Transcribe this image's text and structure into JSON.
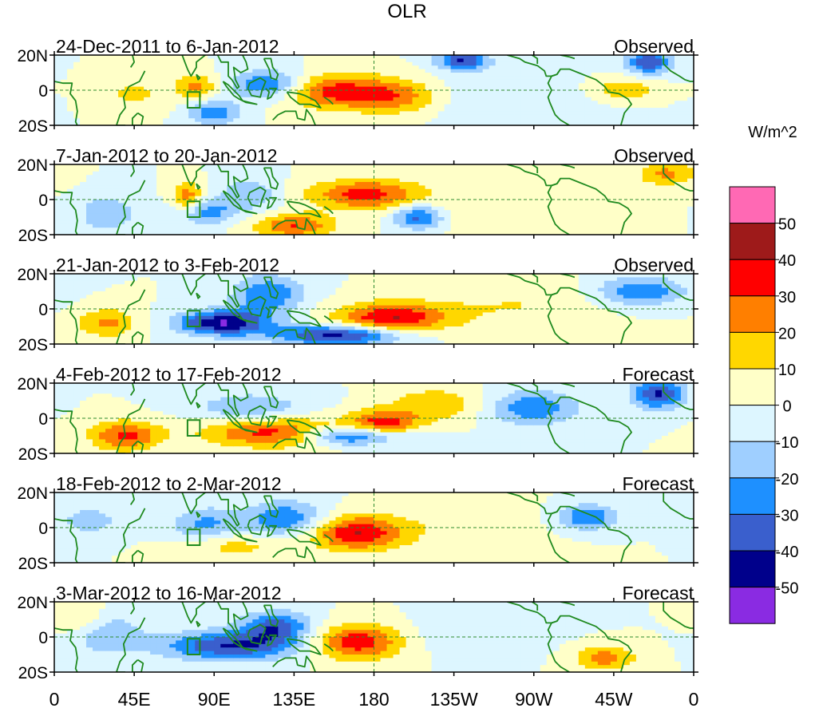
{
  "chart_data": {
    "type": "heatmap",
    "title": "OLR",
    "units_label": "W/m^2",
    "equator_label_style": "dashed equator line and 180 meridian",
    "y_tick_labels": [
      "20N",
      "0",
      "20S"
    ],
    "x_tick_labels": [
      "0",
      "45E",
      "90E",
      "135E",
      "180",
      "135W",
      "90W",
      "45W",
      "0"
    ],
    "x_ticks_lon": [
      0,
      45,
      90,
      135,
      180,
      225,
      270,
      315,
      360
    ],
    "lon_range": [
      0,
      360
    ],
    "lat_range": [
      -20,
      20
    ],
    "colorbar": {
      "levels": [
        -50,
        -40,
        -30,
        -20,
        -10,
        0,
        10,
        20,
        30,
        40,
        50
      ],
      "tick_labels": [
        "50",
        "40",
        "30",
        "20",
        "10",
        "0",
        "-10",
        "-20",
        "-30",
        "-40",
        "-50"
      ],
      "colors": [
        "#8a2be2",
        "#00008b",
        "#3a5fcd",
        "#1e90ff",
        "#9fcfff",
        "#ddf6ff",
        "#ffffc8",
        "#ffd700",
        "#ff7f00",
        "#ff0000",
        "#9e1a1a",
        "#ff69b4"
      ]
    },
    "panels": [
      {
        "period": "24-Dec-2011 to 6-Jan-2012",
        "kind": "Observed",
        "anomalies": [
          {
            "lon": 160,
            "lat": -1,
            "amp": 35,
            "slon": 22,
            "slat": 7
          },
          {
            "lon": 195,
            "lat": -4,
            "amp": 22,
            "slon": 16,
            "slat": 7
          },
          {
            "lon": 120,
            "lat": 3,
            "amp": -32,
            "slon": 14,
            "slat": 6
          },
          {
            "lon": 90,
            "lat": -13,
            "amp": -28,
            "slon": 10,
            "slat": 5
          },
          {
            "lon": 230,
            "lat": 17,
            "amp": -40,
            "slon": 10,
            "slat": 4
          },
          {
            "lon": 335,
            "lat": 16,
            "amp": -38,
            "slon": 9,
            "slat": 5
          },
          {
            "lon": 320,
            "lat": 0,
            "amp": 20,
            "slon": 14,
            "slat": 5
          },
          {
            "lon": 80,
            "lat": 2,
            "amp": 24,
            "slon": 8,
            "slat": 5
          },
          {
            "lon": 45,
            "lat": -2,
            "amp": 12,
            "slon": 14,
            "slat": 7
          },
          {
            "lon": 260,
            "lat": -5,
            "amp": -9,
            "slon": 40,
            "slat": 10
          }
        ]
      },
      {
        "period": "7-Jan-2012 to 20-Jan-2012",
        "kind": "Observed",
        "anomalies": [
          {
            "lon": 175,
            "lat": 3,
            "amp": 34,
            "slon": 22,
            "slat": 6
          },
          {
            "lon": 135,
            "lat": -15,
            "amp": 30,
            "slon": 16,
            "slat": 5
          },
          {
            "lon": 205,
            "lat": -10,
            "amp": -35,
            "slon": 10,
            "slat": 5
          },
          {
            "lon": 85,
            "lat": -7,
            "amp": -25,
            "slon": 12,
            "slat": 5
          },
          {
            "lon": 75,
            "lat": 1,
            "amp": 28,
            "slon": 6,
            "slat": 6
          },
          {
            "lon": 110,
            "lat": 3,
            "amp": -18,
            "slon": 12,
            "slat": 7
          },
          {
            "lon": 345,
            "lat": 15,
            "amp": 22,
            "slon": 12,
            "slat": 5
          },
          {
            "lon": 30,
            "lat": -8,
            "amp": -18,
            "slon": 12,
            "slat": 8
          },
          {
            "lon": 260,
            "lat": -5,
            "amp": 9,
            "slon": 40,
            "slat": 10
          }
        ]
      },
      {
        "period": "21-Jan-2012 to 3-Feb-2012",
        "kind": "Observed",
        "anomalies": [
          {
            "lon": 190,
            "lat": -5,
            "amp": 40,
            "slon": 22,
            "slat": 6
          },
          {
            "lon": 95,
            "lat": -8,
            "amp": -50,
            "slon": 18,
            "slat": 5
          },
          {
            "lon": 160,
            "lat": -15,
            "amp": -45,
            "slon": 25,
            "slat": 4
          },
          {
            "lon": 120,
            "lat": 8,
            "amp": -30,
            "slon": 14,
            "slat": 8
          },
          {
            "lon": 330,
            "lat": 10,
            "amp": -28,
            "slon": 18,
            "slat": 6
          },
          {
            "lon": 30,
            "lat": -8,
            "amp": 22,
            "slon": 12,
            "slat": 6
          },
          {
            "lon": 260,
            "lat": 2,
            "amp": 10,
            "slon": 35,
            "slat": 10
          }
        ]
      },
      {
        "period": "4-Feb-2012 to 17-Feb-2012",
        "kind": "Forecast",
        "anomalies": [
          {
            "lon": 185,
            "lat": -4,
            "amp": 38,
            "slon": 14,
            "slat": 6
          },
          {
            "lon": 125,
            "lat": -8,
            "amp": 36,
            "slon": 28,
            "slat": 6
          },
          {
            "lon": 40,
            "lat": -10,
            "amp": 32,
            "slon": 14,
            "slat": 6
          },
          {
            "lon": 170,
            "lat": -10,
            "amp": -45,
            "slon": 22,
            "slat": 4
          },
          {
            "lon": 340,
            "lat": 14,
            "amp": -42,
            "slon": 10,
            "slat": 6
          },
          {
            "lon": 270,
            "lat": 6,
            "amp": -28,
            "slon": 18,
            "slat": 7
          },
          {
            "lon": 110,
            "lat": 6,
            "amp": -20,
            "slon": 22,
            "slat": 6
          },
          {
            "lon": 215,
            "lat": 8,
            "amp": 18,
            "slon": 18,
            "slat": 7
          }
        ]
      },
      {
        "period": "18-Feb-2012 to 2-Mar-2012",
        "kind": "Forecast",
        "anomalies": [
          {
            "lon": 170,
            "lat": -3,
            "amp": 40,
            "slon": 18,
            "slat": 7
          },
          {
            "lon": 130,
            "lat": 5,
            "amp": -30,
            "slon": 16,
            "slat": 7
          },
          {
            "lon": 85,
            "lat": 2,
            "amp": -22,
            "slon": 14,
            "slat": 7
          },
          {
            "lon": 300,
            "lat": 6,
            "amp": -30,
            "slon": 12,
            "slat": 5
          },
          {
            "lon": 20,
            "lat": 4,
            "amp": -15,
            "slon": 14,
            "slat": 6
          },
          {
            "lon": 100,
            "lat": -10,
            "amp": 15,
            "slon": 20,
            "slat": 5
          },
          {
            "lon": 230,
            "lat": 0,
            "amp": 8,
            "slon": 30,
            "slat": 10
          }
        ]
      },
      {
        "period": "3-Mar-2012 to 16-Mar-2012",
        "kind": "Forecast",
        "anomalies": [
          {
            "lon": 170,
            "lat": -3,
            "amp": 38,
            "slon": 18,
            "slat": 7
          },
          {
            "lon": 100,
            "lat": -5,
            "amp": -40,
            "slon": 28,
            "slat": 6
          },
          {
            "lon": 125,
            "lat": 6,
            "amp": -35,
            "slon": 14,
            "slat": 6
          },
          {
            "lon": 310,
            "lat": -12,
            "amp": 25,
            "slon": 12,
            "slat": 5
          },
          {
            "lon": 30,
            "lat": 2,
            "amp": -20,
            "slon": 14,
            "slat": 8
          },
          {
            "lon": 240,
            "lat": 2,
            "amp": -10,
            "slon": 25,
            "slat": 8
          },
          {
            "lon": 15,
            "lat": 10,
            "amp": 15,
            "slon": 10,
            "slat": 6
          }
        ]
      }
    ]
  },
  "map_colors": {
    "coast": "#1f8a1f",
    "grid": "#2e8b2e",
    "box": "#1f8a1f"
  }
}
